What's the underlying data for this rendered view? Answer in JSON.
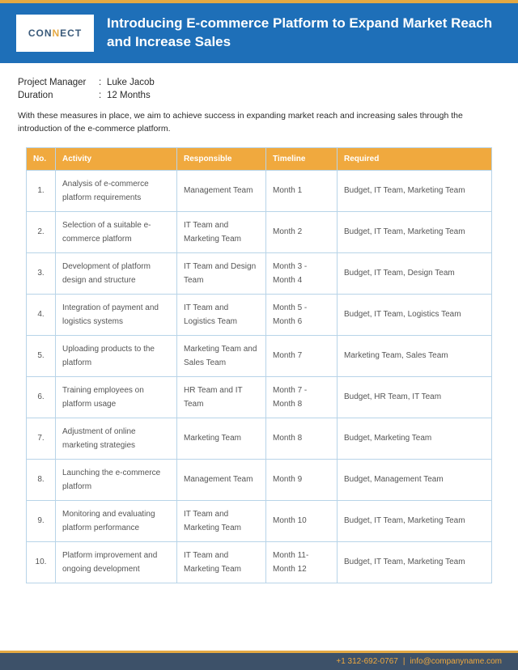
{
  "colors": {
    "header_bg": "#1e6fb8",
    "accent": "#e4a943",
    "table_header_bg": "#f0a93e",
    "table_border": "#b8d4e8",
    "footer_bg": "#3d5169"
  },
  "logo": {
    "text_pre": "CON",
    "text_accent": "N",
    "text_post": "ECT"
  },
  "header": {
    "title": "Introducing E-commerce Platform to Expand Market Reach and Increase Sales"
  },
  "meta": {
    "pm_label": "Project Manager",
    "pm_value": "Luke Jacob",
    "duration_label": "Duration",
    "duration_value": "12 Months"
  },
  "intro": "With these measures in place, we aim to achieve success in expanding market reach and increasing sales through the introduction of the e-commerce platform.",
  "table": {
    "headers": [
      "No.",
      "Activity",
      "Responsible",
      "Timeline",
      "Required"
    ],
    "rows": [
      {
        "no": "1.",
        "activity": "Analysis of e-commerce platform requirements",
        "responsible": "Management Team",
        "timeline": "Month 1",
        "required": "Budget, IT Team, Marketing Team"
      },
      {
        "no": "2.",
        "activity": "Selection of a suitable e-commerce platform",
        "responsible": "IT Team and Marketing Team",
        "timeline": "Month 2",
        "required": "Budget, IT Team, Marketing Team"
      },
      {
        "no": "3.",
        "activity": "Development of platform design and structure",
        "responsible": "IT Team and Design Team",
        "timeline": "Month 3 - Month 4",
        "required": "Budget, IT Team, Design Team"
      },
      {
        "no": "4.",
        "activity": "Integration of payment and logistics systems",
        "responsible": "IT Team and Logistics Team",
        "timeline": "Month 5 - Month 6",
        "required": "Budget, IT Team, Logistics Team"
      },
      {
        "no": "5.",
        "activity": "Uploading products to the platform",
        "responsible": "Marketing Team and Sales Team",
        "timeline": "Month 7",
        "required": "Marketing Team, Sales Team"
      },
      {
        "no": "6.",
        "activity": "Training employees on platform usage",
        "responsible": "HR Team and IT Team",
        "timeline": "Month 7 - Month 8",
        "required": "Budget, HR Team, IT Team"
      },
      {
        "no": "7.",
        "activity": "Adjustment of online marketing strategies",
        "responsible": "Marketing Team",
        "timeline": "Month 8",
        "required": "Budget, Marketing Team"
      },
      {
        "no": "8.",
        "activity": "Launching the e-commerce platform",
        "responsible": "Management Team",
        "timeline": "Month 9",
        "required": "Budget, Management Team"
      },
      {
        "no": "9.",
        "activity": "Monitoring and evaluating platform performance",
        "responsible": "IT Team and Marketing Team",
        "timeline": "Month 10",
        "required": "Budget, IT Team, Marketing Team"
      },
      {
        "no": "10.",
        "activity": "Platform improvement and ongoing development",
        "responsible": "IT Team and Marketing Team",
        "timeline": "Month 11- Month 12",
        "required": "Budget, IT Team, Marketing Team"
      }
    ]
  },
  "footer": {
    "phone": "+1 312-692-0767",
    "email": "info@companyname.com"
  }
}
